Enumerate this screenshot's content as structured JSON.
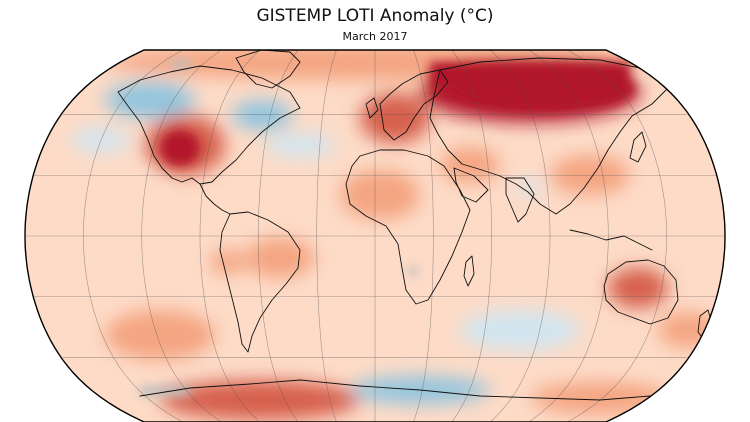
{
  "title": "GISTEMP LOTI Anomaly (°C)",
  "subtitle": "March 2017",
  "map": {
    "projection": "Robinson",
    "variable": "surface temperature anomaly",
    "units": "°C",
    "graticule": true,
    "colors": {
      "strong_warm": "#b2182b",
      "warm": "#d6604d",
      "mild_warm": "#f4a582",
      "slight_warm": "#fddbc7",
      "neutral": "#f7f7f7",
      "slight_cool": "#d1e5f0",
      "cool": "#92c5de",
      "no_data": "#bdbdbd",
      "coastline": "#111111",
      "outline": "#000000"
    }
  }
}
